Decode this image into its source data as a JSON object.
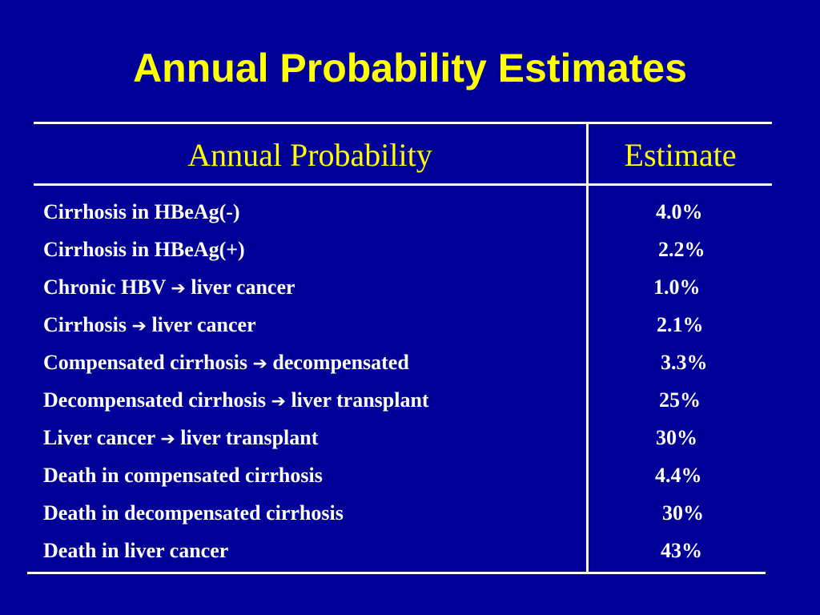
{
  "slide": {
    "title": "Annual Probability Estimates",
    "background_color": "#000099",
    "accent_color": "#FFFF00"
  },
  "table": {
    "headers": {
      "probability": "Annual Probability",
      "estimate": "Estimate"
    },
    "arrow_glyph": "➔",
    "rows": [
      {
        "label": "Cirrhosis in HBeAg(-)",
        "value": "4.0%"
      },
      {
        "label": "Cirrhosis in HBeAg(+)",
        "value": "2.2%"
      },
      {
        "label_from": "Chronic HBV",
        "label_to": "liver cancer",
        "value": "1.0%"
      },
      {
        "label_from": "Cirrhosis",
        "label_to": "liver cancer",
        "value": "2.1%"
      },
      {
        "label_from": "Compensated cirrhosis",
        "label_to": "decompensated",
        "value": "3.3%"
      },
      {
        "label_from": "Decompensated cirrhosis",
        "label_to": "liver transplant",
        "value": "25%"
      },
      {
        "label_from": "Liver cancer",
        "label_to": "liver transplant",
        "value": "30%"
      },
      {
        "label": "Death in compensated cirrhosis",
        "value": "4.4%"
      },
      {
        "label": "Death in decompensated cirrhosis",
        "value": "30%"
      },
      {
        "label": "Death in liver cancer",
        "value": "43%"
      }
    ]
  }
}
